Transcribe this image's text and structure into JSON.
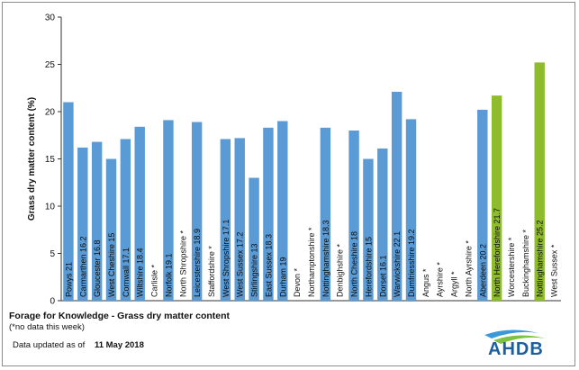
{
  "chart_data": {
    "type": "bar",
    "ylabel": "Grass dry matter content (%)",
    "ylim": [
      0,
      30
    ],
    "yticks": [
      0,
      5,
      10,
      15,
      20,
      25,
      30
    ],
    "grid": false,
    "bars": [
      {
        "label": "Powys 21",
        "value": 21,
        "color": "#5b9bd5"
      },
      {
        "label": "Carmarthen 16.2",
        "value": 16.2,
        "color": "#5b9bd5"
      },
      {
        "label": "Gloucester 16.8",
        "value": 16.8,
        "color": "#5b9bd5"
      },
      {
        "label": "West Cheshire 15",
        "value": 15,
        "color": "#5b9bd5"
      },
      {
        "label": "Cornwall 17.1",
        "value": 17.1,
        "color": "#5b9bd5"
      },
      {
        "label": "Wiltshire 18.4",
        "value": 18.4,
        "color": "#5b9bd5"
      },
      {
        "label": "Carlisle *",
        "value": null,
        "color": "#5b9bd5"
      },
      {
        "label": "Norfolk 19.1",
        "value": 19.1,
        "color": "#5b9bd5"
      },
      {
        "label": "North Shropshire *",
        "value": null,
        "color": "#5b9bd5"
      },
      {
        "label": "Leicestershire 18.9",
        "value": 18.9,
        "color": "#5b9bd5"
      },
      {
        "label": "Staffordshire *",
        "value": null,
        "color": "#5b9bd5"
      },
      {
        "label": "West Shropshire 17.1",
        "value": 17.1,
        "color": "#5b9bd5"
      },
      {
        "label": "West Sussex 17.2",
        "value": 17.2,
        "color": "#5b9bd5"
      },
      {
        "label": "Stirlingshire 13",
        "value": 13,
        "color": "#5b9bd5"
      },
      {
        "label": "East Sussex 18.3",
        "value": 18.3,
        "color": "#5b9bd5"
      },
      {
        "label": "Durham 19",
        "value": 19,
        "color": "#5b9bd5"
      },
      {
        "label": "Devon *",
        "value": null,
        "color": "#5b9bd5"
      },
      {
        "label": "Northamptonshire *",
        "value": null,
        "color": "#5b9bd5"
      },
      {
        "label": "Nottinghamshire 18.3",
        "value": 18.3,
        "color": "#5b9bd5"
      },
      {
        "label": "Denbighshire *",
        "value": null,
        "color": "#5b9bd5"
      },
      {
        "label": "North Cheshire 18",
        "value": 18,
        "color": "#5b9bd5"
      },
      {
        "label": "Herefordshire 15",
        "value": 15,
        "color": "#5b9bd5"
      },
      {
        "label": "Dorset 16.1",
        "value": 16.1,
        "color": "#5b9bd5"
      },
      {
        "label": "Warwickshire 22.1",
        "value": 22.1,
        "color": "#5b9bd5"
      },
      {
        "label": "Dumfriesshire 19.2",
        "value": 19.2,
        "color": "#5b9bd5"
      },
      {
        "label": "Angus *",
        "value": null,
        "color": "#5b9bd5"
      },
      {
        "label": "Ayrshire *",
        "value": null,
        "color": "#5b9bd5"
      },
      {
        "label": "Argyll *",
        "value": null,
        "color": "#5b9bd5"
      },
      {
        "label": "North Ayrshire *",
        "value": null,
        "color": "#5b9bd5"
      },
      {
        "label": "Aberdeen  20.2",
        "value": 20.2,
        "color": "#5b9bd5"
      },
      {
        "label": "North Herefordshire 21.7",
        "value": 21.7,
        "color": "#8fbc2c"
      },
      {
        "label": "Worcestershire *",
        "value": null,
        "color": "#5b9bd5"
      },
      {
        "label": "Buckinghamshire *",
        "value": null,
        "color": "#5b9bd5"
      },
      {
        "label": "Nottinghamshire 25.2",
        "value": 25.2,
        "color": "#8fbc2c"
      },
      {
        "label": "West Sussex *",
        "value": null,
        "color": "#5b9bd5"
      }
    ]
  },
  "caption": {
    "title": "Forage for Knowledge - Grass dry matter content",
    "note": "(*no data this week)",
    "updated_prefix": "Data updated as of",
    "updated_date": "11 May 2018"
  },
  "logo": {
    "text": "AHDB",
    "color": "#1d5f9e",
    "swoosh_colors": [
      "#3a9ad9",
      "#7fc241"
    ]
  }
}
